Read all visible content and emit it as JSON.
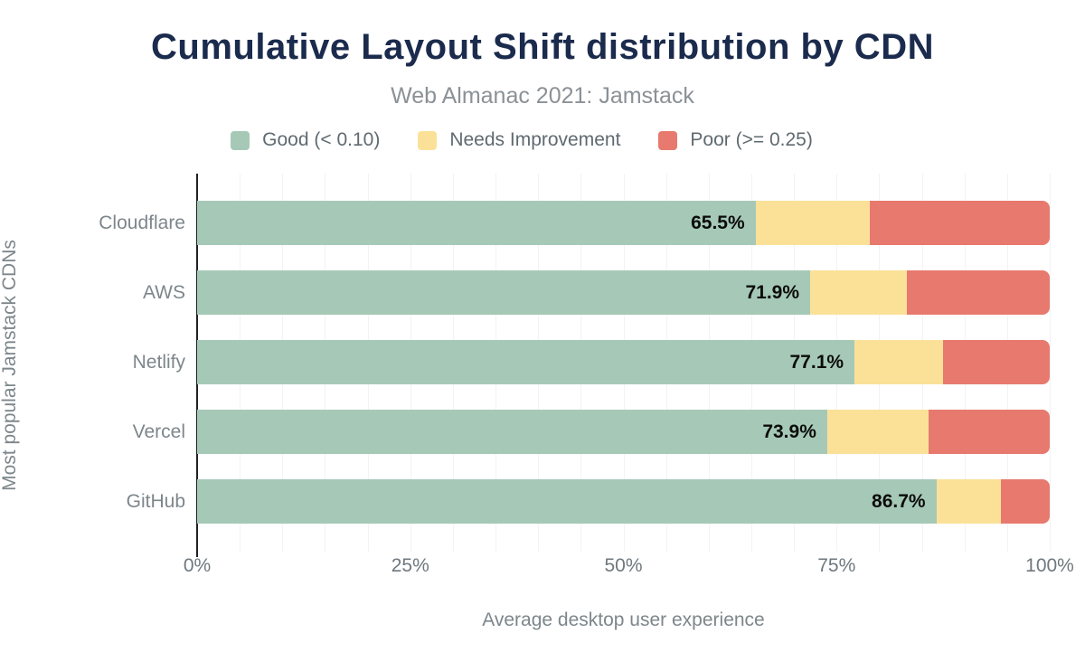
{
  "page": {
    "title": "Cumulative Layout Shift distribution by CDN",
    "subtitle": "Web Almanac 2021: Jamstack"
  },
  "colors": {
    "good": "#a6c9b7",
    "needs_improvement": "#fbe198",
    "poor": "#e7796e",
    "title": "#1b2b4d",
    "axis_line": "#202124",
    "gridline": "#f3f3f3"
  },
  "chart_data": {
    "type": "bar",
    "orientation": "horizontal-stacked",
    "title": "Cumulative Layout Shift distribution by CDN",
    "subtitle": "Web Almanac 2021: Jamstack",
    "categories": [
      "Cloudflare",
      "AWS",
      "Netlify",
      "Vercel",
      "GitHub"
    ],
    "series": [
      {
        "name": "Good (< 0.10)",
        "color": "#a6c9b7",
        "values": [
          65.5,
          71.9,
          77.1,
          73.9,
          86.7
        ],
        "labels": [
          "65.5%",
          "71.9%",
          "77.1%",
          "73.9%",
          "86.7%"
        ]
      },
      {
        "name": "Needs Improvement",
        "color": "#fbe198",
        "values": [
          13.4,
          11.3,
          10.4,
          11.9,
          7.6
        ],
        "labels": null
      },
      {
        "name": "Poor (>= 0.25)",
        "color": "#e7796e",
        "values": [
          21.1,
          16.8,
          12.5,
          14.2,
          5.7
        ],
        "labels": null
      }
    ],
    "xlabel": "Average desktop user experience",
    "ylabel": "Most popular Jamstack CDNs",
    "x_ticks": [
      {
        "label": "0%",
        "value": 0
      },
      {
        "label": "25%",
        "value": 25
      },
      {
        "label": "50%",
        "value": 50
      },
      {
        "label": "75%",
        "value": 75
      },
      {
        "label": "100%",
        "value": 100
      }
    ],
    "xlim": [
      0,
      100
    ],
    "grid": "vertical gridlines every 5%",
    "legend_position": "top"
  }
}
